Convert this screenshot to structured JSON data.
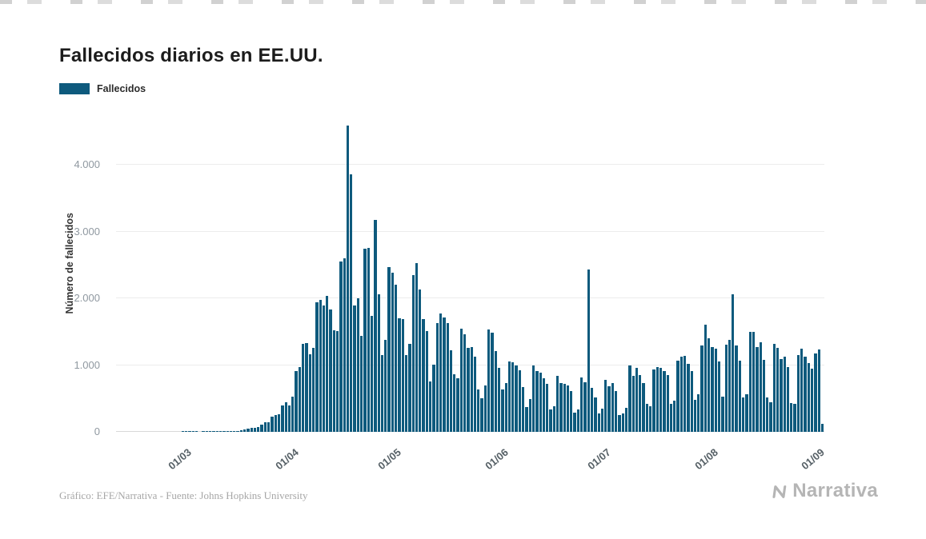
{
  "page": {
    "title": "Fallecidos diarios en EE.UU.",
    "footer_credit": "Gráfico: EFE/Narrativa - Fuente: Johns Hopkins University",
    "brand": "Narrativa"
  },
  "legend": {
    "label": "Fallecidos"
  },
  "chart_data": {
    "type": "bar",
    "title": "Fallecidos diarios en EE.UU.",
    "series_name": "Fallecidos",
    "xlabel": "",
    "ylabel": "Número de fallecidos",
    "bar_color": "#0e5a7d",
    "grid": true,
    "legend_position": "top-left",
    "ylim": [
      0,
      4700
    ],
    "ytick_values": [
      0,
      1000,
      2000,
      3000,
      4000
    ],
    "ytick_labels": [
      "0",
      "1.000",
      "2.000",
      "3.000",
      "4.000"
    ],
    "xtick_labels": [
      "01/03",
      "01/04",
      "01/05",
      "01/06",
      "01/07",
      "01/08",
      "01/09"
    ],
    "xtick_indices": [
      21,
      52,
      82,
      113,
      143,
      174,
      205
    ],
    "values": [
      0,
      0,
      0,
      0,
      0,
      0,
      0,
      0,
      0,
      0,
      0,
      0,
      0,
      0,
      0,
      0,
      0,
      0,
      0,
      1,
      1,
      1,
      1,
      1,
      0,
      1,
      1,
      2,
      4,
      4,
      2,
      4,
      7,
      7,
      11,
      18,
      23,
      41,
      46,
      57,
      58,
      68,
      110,
      140,
      150,
      225,
      247,
      268,
      400,
      445,
      390,
      525,
      909,
      968,
      1320,
      1331,
      1165,
      1255,
      1940,
      1973,
      1900,
      2035,
      1830,
      1528,
      1509,
      2556,
      2597,
      4591,
      3857,
      1891,
      1997,
      1433,
      2751,
      2763,
      1738,
      3179,
      2065,
      1157,
      1384,
      2470,
      2390,
      2201,
      1697,
      1691,
      1154,
      1324,
      2350,
      2528,
      2129,
      1687,
      1510,
      750,
      1008,
      1630,
      1772,
      1715,
      1635,
      1218,
      865,
      808,
      1552,
      1461,
      1263,
      1271,
      1127,
      638,
      500,
      693,
      1534,
      1483,
      1212,
      960,
      638,
      730,
      1053,
      1046,
      994,
      921,
      676,
      373,
      487,
      998,
      916,
      885,
      800,
      716,
      330,
      388,
      842,
      734,
      722,
      690,
      606,
      285,
      331,
      817,
      738,
      2437,
      654,
      512,
      277,
      353,
      779,
      680,
      728,
      614,
      252,
      271,
      356,
      993,
      834,
      964,
      849,
      730,
      420,
      380,
      935,
      976,
      963,
      908,
      850,
      420,
      468,
      1070,
      1129,
      1140,
      1019,
      908,
      480,
      558,
      1294,
      1603,
      1403,
      1268,
      1244,
      1054,
      532,
      1302,
      1380,
      2060,
      1290,
      1064,
      515,
      565,
      1504,
      1499,
      1268,
      1342,
      1082,
      510,
      445,
      1324,
      1263,
      1094,
      1130,
      975,
      430,
      425,
      1147,
      1253,
      1126,
      1026,
      945,
      1175,
      1240,
      120
    ]
  }
}
